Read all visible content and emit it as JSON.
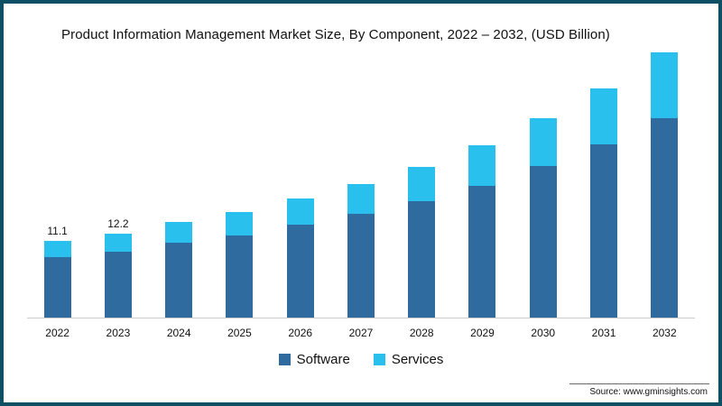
{
  "page": {
    "border_color": "#0e4f63",
    "background": "#ffffff"
  },
  "chart": {
    "title": "Product Information Management Market Size, By Component, 2022 – 2032, (USD Billion)",
    "source": "Source: www.gminsights.com"
  },
  "chart_data": {
    "type": "bar",
    "stacked": true,
    "title": "Product Information Management Market Size, By Component, 2022 – 2032, (USD Billion)",
    "xlabel": "",
    "ylabel": "USD Billion",
    "ylim": [
      0,
      40
    ],
    "grid": false,
    "legend_position": "bottom",
    "categories": [
      "2022",
      "2023",
      "2024",
      "2025",
      "2026",
      "2027",
      "2028",
      "2029",
      "2030",
      "2031",
      "2032"
    ],
    "series": [
      {
        "name": "Software",
        "color": "#2f6b9e",
        "values": [
          8.8,
          9.6,
          10.9,
          12.0,
          13.5,
          15.1,
          17.0,
          19.2,
          22.0,
          25.2,
          29.0
        ]
      },
      {
        "name": "Services",
        "color": "#29c0ee",
        "values": [
          2.3,
          2.6,
          3.0,
          3.4,
          3.8,
          4.3,
          5.0,
          5.9,
          6.9,
          8.1,
          9.6
        ]
      }
    ],
    "totals": [
      11.1,
      12.2,
      13.9,
      15.4,
      17.3,
      19.4,
      22.0,
      25.1,
      28.9,
      33.3,
      38.6
    ],
    "bar_labels": [
      "11.1",
      "12.2",
      null,
      null,
      null,
      null,
      null,
      null,
      null,
      null,
      null
    ],
    "baseline_color": "#cccccc"
  },
  "legend": {
    "items": [
      {
        "label": "Software",
        "color": "#2f6b9e"
      },
      {
        "label": "Services",
        "color": "#29c0ee"
      }
    ]
  }
}
